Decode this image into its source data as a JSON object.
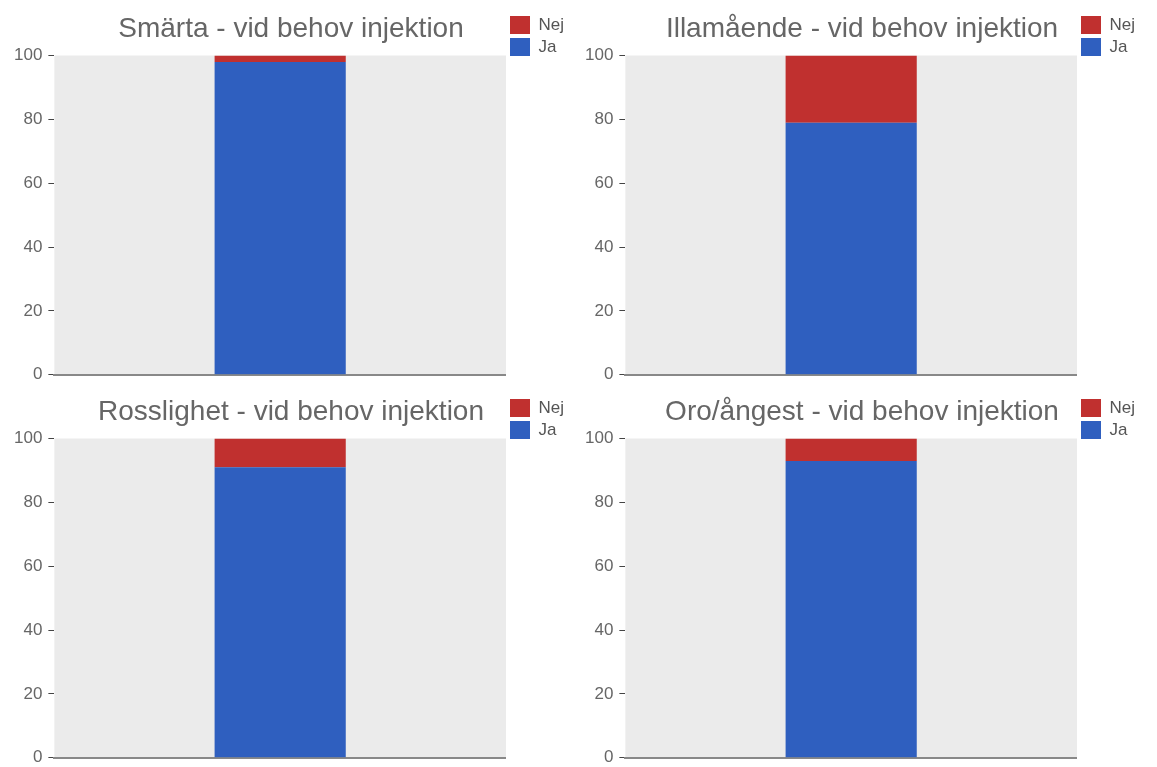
{
  "chart_data": [
    {
      "type": "bar",
      "title": "Smärta - vid behov injektion",
      "categories": [
        null
      ],
      "stacked": true,
      "series": [
        {
          "name": "Ja",
          "color": "#2f5fbf",
          "values": [
            98
          ]
        },
        {
          "name": "Nej",
          "color": "#c0302f",
          "values": [
            2
          ]
        }
      ],
      "ylim": [
        0,
        100
      ],
      "yticks": [
        0,
        20,
        40,
        60,
        80,
        100
      ],
      "grid": false,
      "legend": "top right",
      "tick_labels": "y"
    },
    {
      "type": "bar",
      "title": "Illamående - vid behov injektion",
      "categories": [
        null
      ],
      "stacked": true,
      "series": [
        {
          "name": "Ja",
          "color": "#2f5fbf",
          "values": [
            79
          ]
        },
        {
          "name": "Nej",
          "color": "#c0302f",
          "values": [
            21
          ]
        }
      ],
      "ylim": [
        0,
        100
      ],
      "yticks": [
        0,
        20,
        40,
        60,
        80,
        100
      ],
      "grid": false,
      "legend": "top right",
      "tick_labels": "y"
    },
    {
      "type": "bar",
      "title": "Rosslighet - vid behov injektion",
      "categories": [
        null
      ],
      "stacked": true,
      "series": [
        {
          "name": "Ja",
          "color": "#2f5fbf",
          "values": [
            91
          ]
        },
        {
          "name": "Nej",
          "color": "#c0302f",
          "values": [
            9
          ]
        }
      ],
      "ylim": [
        0,
        100
      ],
      "yticks": [
        0,
        20,
        40,
        60,
        80,
        100
      ],
      "grid": false,
      "legend": "top right",
      "tick_labels": "y"
    },
    {
      "type": "bar",
      "title": "Oro/ångest - vid behov injektion",
      "categories": [
        null
      ],
      "stacked": true,
      "series": [
        {
          "name": "Ja",
          "color": "#2f5fbf",
          "values": [
            93
          ]
        },
        {
          "name": "Nej",
          "color": "#c0302f",
          "values": [
            7
          ]
        }
      ],
      "ylim": [
        0,
        100
      ],
      "yticks": [
        0,
        20,
        40,
        60,
        80,
        100
      ],
      "grid": false,
      "legend": "top right",
      "tick_labels": "y"
    }
  ]
}
